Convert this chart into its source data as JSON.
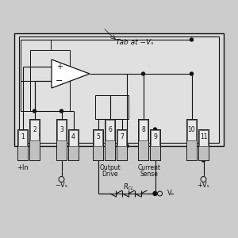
{
  "bg_color": "#cccccc",
  "ic_outer_bg": "#d8d8d8",
  "ic_inner_bg": "#e0e0e0",
  "pin_bg": "#c0c0c0",
  "pin_inner_bg": "#e8e8e8",
  "opamp_bg": "#ffffff",
  "line_color": "#111111",
  "text_color": "#111111",
  "title_tab": "Tab at −Vₛ",
  "figsize": [
    3.0,
    3.0
  ],
  "dpi": 100,
  "Rcl_label": "Rₒₗ",
  "Vo_label": "Vₒ",
  "minus_vs_label": "−Vₛ",
  "plus_vs_label": "+Vₛ"
}
